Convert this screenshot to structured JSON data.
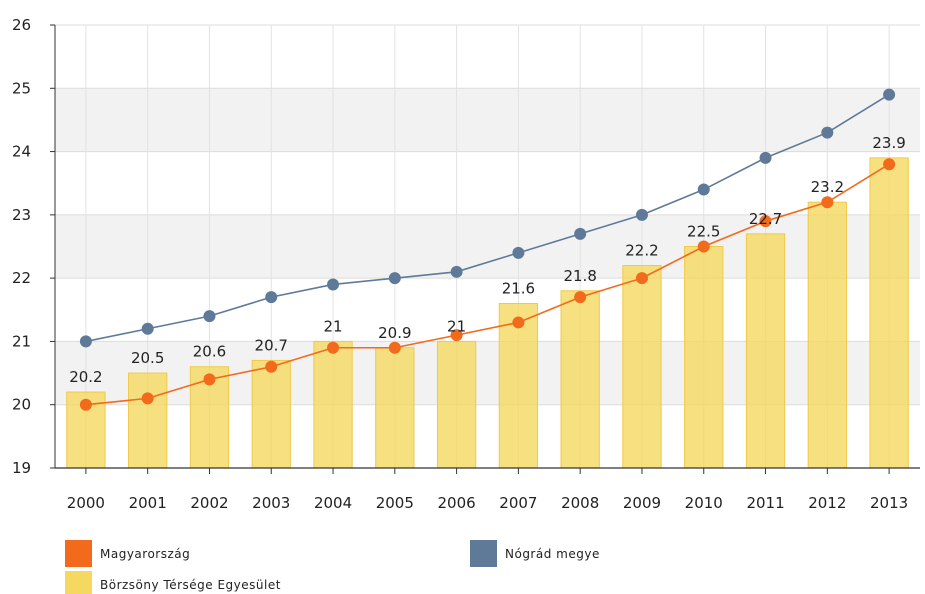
{
  "chart_data": {
    "type": "bar",
    "categories": [
      "2000",
      "2001",
      "2002",
      "2003",
      "2004",
      "2005",
      "2006",
      "2007",
      "2008",
      "2009",
      "2010",
      "2011",
      "2012",
      "2013"
    ],
    "ylim": [
      19,
      26
    ],
    "yticks": [
      "19",
      "20",
      "21",
      "22",
      "23",
      "24",
      "25",
      "26"
    ],
    "grid": "horizontal and vertical",
    "legend_position": "bottom",
    "series": [
      {
        "name": "Börzsöny Térsége Egyesület",
        "kind": "bar",
        "color": "#f5d85f",
        "values": [
          20.2,
          20.5,
          20.6,
          20.7,
          21,
          20.9,
          21,
          21.6,
          21.8,
          22.2,
          22.5,
          22.7,
          23.2,
          23.9
        ],
        "labels": [
          "20.2",
          "20.5",
          "20.6",
          "20.7",
          "21",
          "20.9",
          "21",
          "21.6",
          "21.8",
          "22.2",
          "22.5",
          "22.7",
          "23.2",
          "23.9"
        ]
      },
      {
        "name": "Magyarország",
        "kind": "line",
        "color": "#f26a1b",
        "values": [
          20.0,
          20.1,
          20.4,
          20.6,
          20.9,
          20.9,
          21.1,
          21.3,
          21.7,
          22.0,
          22.5,
          22.9,
          23.2,
          23.8
        ]
      },
      {
        "name": "Nógrád megye",
        "kind": "line",
        "color": "#5f7a99",
        "values": [
          21.0,
          21.2,
          21.4,
          21.7,
          21.9,
          22.0,
          22.1,
          22.4,
          22.7,
          23.0,
          23.4,
          23.9,
          24.3,
          24.9
        ]
      }
    ],
    "legend": [
      {
        "label": "Magyarország",
        "color": "#f26a1b"
      },
      {
        "label": "Nógrád megye",
        "color": "#5f7a99"
      },
      {
        "label": "Börzsöny Térsége Egyesület",
        "color": "#f5d85f"
      }
    ]
  }
}
